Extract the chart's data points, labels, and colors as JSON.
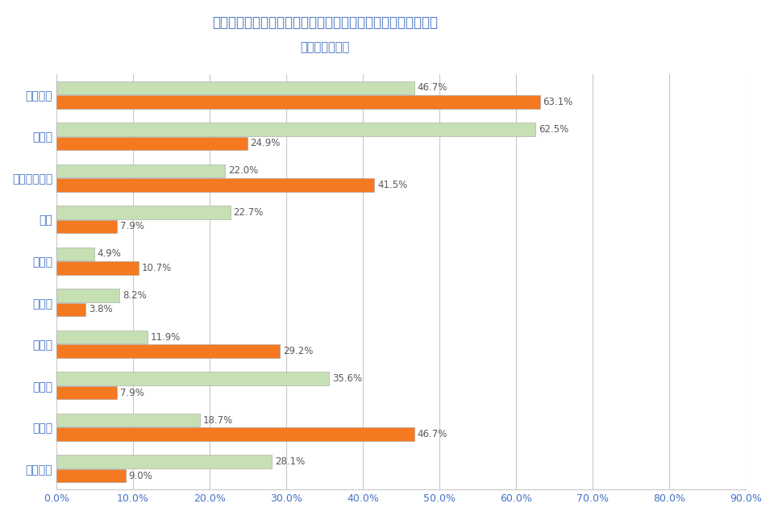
{
  "title_line1": "「歳を重ねる」ということについてあなたはどう感じますか？",
  "title_line2": "（複数回答可）",
  "categories": [
    "楽しみだ",
    "不安だ",
    "ワクワクする",
    "怖い",
    "嫁しい",
    "悲しい",
    "幸せだ",
    "寂しい",
    "自由だ",
    "不自由だ"
  ],
  "before": [
    46.7,
    62.5,
    22.0,
    22.7,
    4.9,
    8.2,
    11.9,
    35.6,
    18.7,
    28.1
  ],
  "after": [
    63.1,
    24.9,
    41.5,
    7.9,
    10.7,
    3.8,
    29.2,
    7.9,
    46.7,
    9.0
  ],
  "before_labels": [
    "46.7%",
    "62.5%",
    "22.0%",
    "22.7%",
    "4.9%",
    "8.2%",
    "11.9%",
    "35.6%",
    "18.7%",
    "28.1%"
  ],
  "after_labels": [
    "63.1%",
    "24.9%",
    "41.5%",
    "7.9%",
    "10.7%",
    "3.8%",
    "29.2%",
    "7.9%",
    "46.7%",
    "9.0%"
  ],
  "before_color": "#c6e0b4",
  "after_color": "#f47920",
  "xlim": [
    0,
    90
  ],
  "xticks": [
    0,
    10,
    20,
    30,
    40,
    50,
    60,
    70,
    80,
    90
  ],
  "xtick_labels": [
    "0.0%",
    "10.0%",
    "20.0%",
    "30.0%",
    "40.0%",
    "50.0%",
    "60.0%",
    "70.0%",
    "80.0%",
    "90.0%"
  ],
  "bar_height": 0.32,
  "bar_gap": 0.02,
  "title_color": "#4472c4",
  "label_color": "#595959",
  "ytick_color": "#4472c4",
  "xtick_color": "#4472c4",
  "grid_color": "#c8c8c8",
  "background_color": "#ffffff",
  "title_fontsize": 12,
  "subtitle_fontsize": 10.5,
  "label_fontsize": 8.5,
  "xtick_fontsize": 9,
  "category_fontsize": 10
}
